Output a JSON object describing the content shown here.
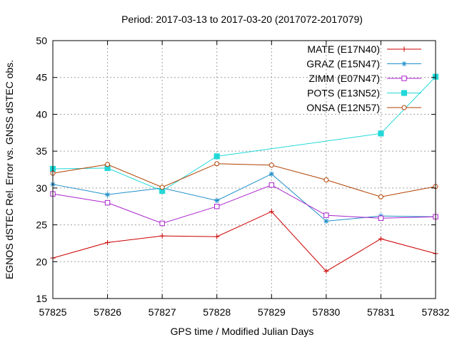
{
  "chart_data": {
    "type": "line",
    "title": "Period: 2017-03-13 to 2017-03-20 (2017072-2017079)",
    "xlabel": "GPS time / Modified Julian Days",
    "ylabel": "EGNOS dSTEC Rel. Error vs. GNSS dSTEC obs.",
    "xlim": [
      57825,
      57832
    ],
    "ylim": [
      15,
      50
    ],
    "x": [
      57825,
      57826,
      57827,
      57828,
      57829,
      57830,
      57831,
      57832
    ],
    "x_ticks": [
      "57825",
      "57826",
      "57827",
      "57828",
      "57829",
      "57830",
      "57831",
      "57832"
    ],
    "y_ticks": [
      "15",
      "20",
      "25",
      "30",
      "35",
      "40",
      "45",
      "50"
    ],
    "grid": true,
    "legend_position": "top-right",
    "series": [
      {
        "name": "MATE (E17N40)",
        "color": "#cc0000",
        "marker": "plus",
        "points": [
          [
            57825,
            20.5
          ],
          [
            57826,
            22.6
          ],
          [
            57827,
            23.5
          ],
          [
            57828,
            23.4
          ],
          [
            57829,
            26.8
          ],
          [
            57830,
            18.7
          ],
          [
            57831,
            23.1
          ],
          [
            57832,
            21.1
          ]
        ]
      },
      {
        "name": "GRAZ (E15N47)",
        "color": "#1f8fc8",
        "marker": "star",
        "points": [
          [
            57825,
            30.5
          ],
          [
            57826,
            29.1
          ],
          [
            57827,
            30.0
          ],
          [
            57828,
            28.3
          ],
          [
            57829,
            31.9
          ],
          [
            57830,
            25.5
          ],
          [
            57831,
            26.2
          ],
          [
            57832,
            26.1
          ]
        ]
      },
      {
        "name": "ZIMM (E07N47)",
        "color": "#aa22cc",
        "marker": "square-open",
        "points": [
          [
            57825,
            29.2
          ],
          [
            57826,
            28.0
          ],
          [
            57827,
            25.2
          ],
          [
            57828,
            27.5
          ],
          [
            57829,
            30.4
          ],
          [
            57830,
            26.3
          ],
          [
            57831,
            25.9
          ],
          [
            57832,
            26.1
          ]
        ]
      },
      {
        "name": "POTS (E13N52)",
        "color": "#22d8d8",
        "marker": "square-filled",
        "points": [
          [
            57825,
            32.6
          ],
          [
            57826,
            32.7
          ],
          [
            57827,
            29.6
          ],
          [
            57828,
            34.3
          ],
          [
            57831,
            37.4
          ],
          [
            57832,
            45.1
          ]
        ]
      },
      {
        "name": "ONSA (E12N57)",
        "color": "#b04000",
        "marker": "circle-open",
        "points": [
          [
            57825,
            32.0
          ],
          [
            57826,
            33.2
          ],
          [
            57827,
            30.1
          ],
          [
            57828,
            33.3
          ],
          [
            57829,
            33.1
          ],
          [
            57830,
            31.1
          ],
          [
            57831,
            28.8
          ],
          [
            57832,
            30.2
          ]
        ]
      }
    ]
  }
}
